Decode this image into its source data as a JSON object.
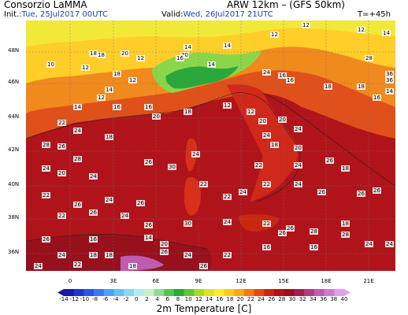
{
  "header": {
    "source": "Consorzio LaMMA",
    "model": "ARW 12km – (GFS 50km)",
    "init_label": "Init.:",
    "init_value": "Tue, 25Jul2017 00UTC",
    "valid_label": "Valid:",
    "valid_value": "Wed, 26Jul2017 21UTC",
    "lead_time": "T=+45h"
  },
  "axes": {
    "lat_labels": [
      "48N",
      "46N",
      "44N",
      "42N",
      "40N",
      "38N",
      "36N"
    ],
    "lon_labels": [
      "0",
      "3E",
      "6E",
      "9E",
      "12E",
      "15E",
      "18E",
      "21E"
    ]
  },
  "colorbar": {
    "title": "2m Temperature [C]",
    "ticks": [
      "-14",
      "-12",
      "-10",
      "-8",
      "-6",
      "-4",
      "-2",
      "0",
      "2",
      "4",
      "6",
      "8",
      "10",
      "12",
      "14",
      "16",
      "18",
      "20",
      "22",
      "24",
      "26",
      "28",
      "30",
      "32",
      "34",
      "36",
      "38",
      "40"
    ],
    "colors": [
      "#1a1aa0",
      "#1f35c8",
      "#2a55e0",
      "#3a7aee",
      "#4ea0f2",
      "#66c2f4",
      "#8ad8f0",
      "#b4ecec",
      "#c8f0c8",
      "#8fdc8f",
      "#55c455",
      "#2aa83a",
      "#66c23a",
      "#a8d82a",
      "#e0e030",
      "#ffec30",
      "#ffcc20",
      "#ffa818",
      "#f07a14",
      "#e04a10",
      "#c82810",
      "#b01414",
      "#98101c",
      "#a01e50",
      "#b03c80",
      "#c05cb0",
      "#d07ad0",
      "#e0a0e8"
    ]
  },
  "map": {
    "temperature_labels": [
      "12",
      "12",
      "14",
      "12",
      "14",
      "14",
      "18",
      "20",
      "20",
      "28",
      "36",
      "36",
      "12",
      "16",
      "18",
      "14",
      "24",
      "16",
      "16",
      "18",
      "18",
      "14",
      "16",
      "10",
      "12",
      "18",
      "12",
      "14",
      "12",
      "14",
      "16",
      "16",
      "20",
      "18",
      "12",
      "12",
      "20",
      "20",
      "24",
      "22",
      "24",
      "18",
      "28",
      "26",
      "28",
      "24",
      "20",
      "24",
      "26",
      "30",
      "24",
      "24",
      "18",
      "20",
      "24",
      "26",
      "18",
      "22",
      "22",
      "22",
      "24",
      "22",
      "24",
      "26",
      "26",
      "26",
      "22",
      "26",
      "24",
      "26",
      "22",
      "26",
      "24",
      "26",
      "30",
      "24",
      "22",
      "26",
      "28",
      "28",
      "24",
      "24",
      "26",
      "24",
      "26",
      "26",
      "16",
      "16",
      "18",
      "14",
      "20",
      "18",
      "18",
      "16",
      "18",
      "22",
      "24",
      "22",
      "24",
      "26"
    ]
  }
}
